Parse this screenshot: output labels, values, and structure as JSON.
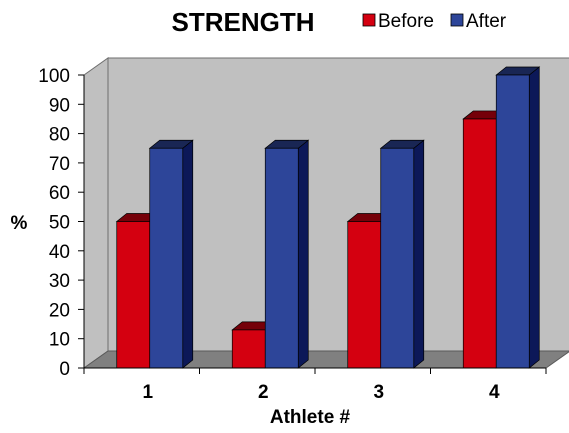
{
  "chart_data": {
    "type": "bar",
    "title": "STRENGTH",
    "xlabel": "Athlete #",
    "ylabel": "%",
    "categories": [
      "1",
      "2",
      "3",
      "4"
    ],
    "series": [
      {
        "name": "Before",
        "values": [
          50,
          13,
          50,
          85
        ],
        "color": "#d40010"
      },
      {
        "name": "After",
        "values": [
          75,
          75,
          75,
          100
        ],
        "color": "#2d4599"
      }
    ],
    "ylim": [
      0,
      100
    ],
    "yticks": [
      0,
      10,
      20,
      30,
      40,
      50,
      60,
      70,
      80,
      90,
      100
    ],
    "grid": false,
    "legend_position": "top-right",
    "three_d": true,
    "wall_color": "#c0c0c0",
    "floor_color": "#808080"
  }
}
